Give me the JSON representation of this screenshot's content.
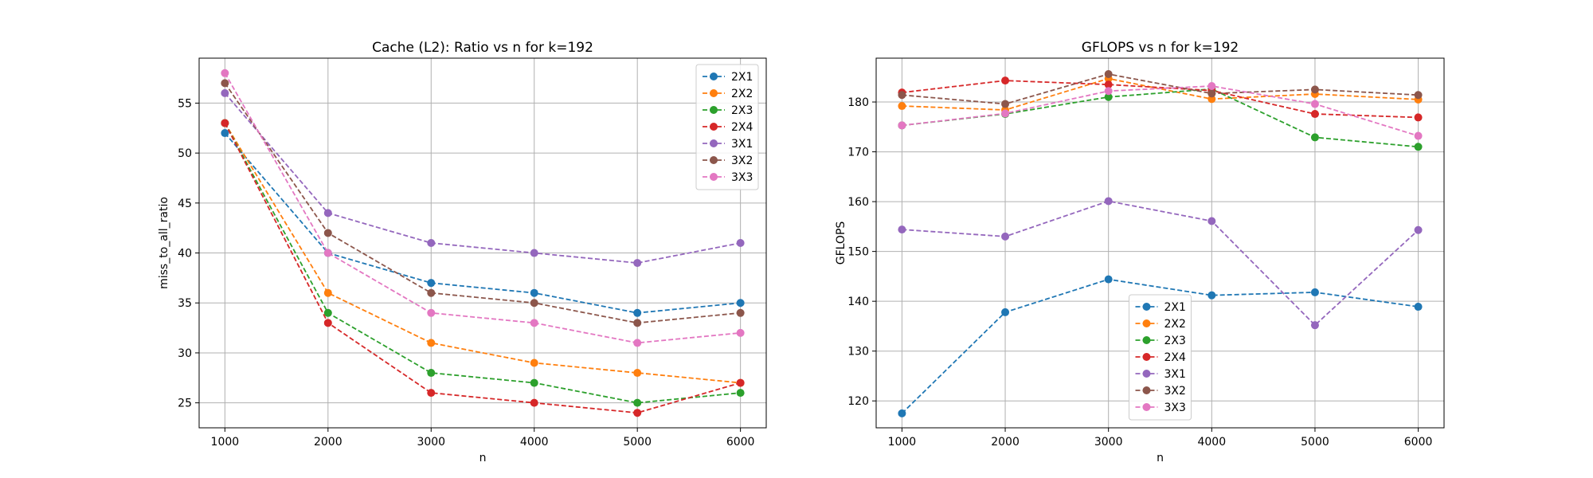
{
  "chart_data": [
    {
      "type": "line",
      "title": "Cache (L2): Ratio vs n for k=192",
      "xlabel": "n",
      "ylabel": "miss_to_all_ratio",
      "x": [
        1000,
        2000,
        3000,
        4000,
        5000,
        6000
      ],
      "xlim": [
        750,
        6250
      ],
      "ylim": [
        22.5,
        59.5
      ],
      "xticks": [
        1000,
        2000,
        3000,
        4000,
        5000,
        6000
      ],
      "yticks": [
        25,
        30,
        35,
        40,
        45,
        50,
        55
      ],
      "grid": true,
      "legend_position": "upper right",
      "series": [
        {
          "name": "2X1",
          "color": "#1f77b4",
          "values": [
            52,
            40,
            37,
            36,
            34,
            35
          ]
        },
        {
          "name": "2X2",
          "color": "#ff7f0e",
          "values": [
            53,
            36,
            31,
            29,
            28,
            27
          ]
        },
        {
          "name": "2X3",
          "color": "#2ca02c",
          "values": [
            53,
            34,
            28,
            27,
            25,
            26
          ]
        },
        {
          "name": "2X4",
          "color": "#d62728",
          "values": [
            53,
            33,
            26,
            25,
            24,
            27
          ]
        },
        {
          "name": "3X1",
          "color": "#9467bd",
          "values": [
            56,
            44,
            41,
            40,
            39,
            41
          ]
        },
        {
          "name": "3X2",
          "color": "#8c564b",
          "values": [
            57,
            42,
            36,
            35,
            33,
            34
          ]
        },
        {
          "name": "3X3",
          "color": "#e377c2",
          "values": [
            58,
            40,
            34,
            33,
            31,
            32
          ]
        }
      ]
    },
    {
      "type": "line",
      "title": "GFLOPS vs n for k=192",
      "xlabel": "n",
      "ylabel": "GFLOPS",
      "x": [
        1000,
        2000,
        3000,
        4000,
        5000,
        6000
      ],
      "xlim": [
        750,
        6250
      ],
      "ylim": [
        114.6,
        188.8
      ],
      "xticks": [
        1000,
        2000,
        3000,
        4000,
        5000,
        6000
      ],
      "yticks": [
        120,
        130,
        140,
        150,
        160,
        170,
        180
      ],
      "grid": true,
      "legend_position": "lower center",
      "series": [
        {
          "name": "2X1",
          "color": "#1f77b4",
          "values": [
            117.5,
            137.8,
            144.4,
            141.2,
            141.8,
            138.9
          ]
        },
        {
          "name": "2X2",
          "color": "#ff7f0e",
          "values": [
            179.2,
            178.4,
            184.7,
            180.6,
            181.6,
            180.5
          ]
        },
        {
          "name": "2X3",
          "color": "#2ca02c",
          "values": [
            175.3,
            177.6,
            181.0,
            182.6,
            172.9,
            171.0
          ]
        },
        {
          "name": "2X4",
          "color": "#d62728",
          "values": [
            181.9,
            184.3,
            183.5,
            182.3,
            177.6,
            176.9
          ]
        },
        {
          "name": "3X1",
          "color": "#9467bd",
          "values": [
            154.4,
            153.0,
            160.1,
            156.1,
            135.2,
            154.3
          ]
        },
        {
          "name": "3X2",
          "color": "#8c564b",
          "values": [
            181.4,
            179.6,
            185.6,
            181.7,
            182.5,
            181.4
          ]
        },
        {
          "name": "3X3",
          "color": "#e377c2",
          "values": [
            175.3,
            177.7,
            182.2,
            183.2,
            179.6,
            173.2
          ]
        }
      ]
    }
  ]
}
